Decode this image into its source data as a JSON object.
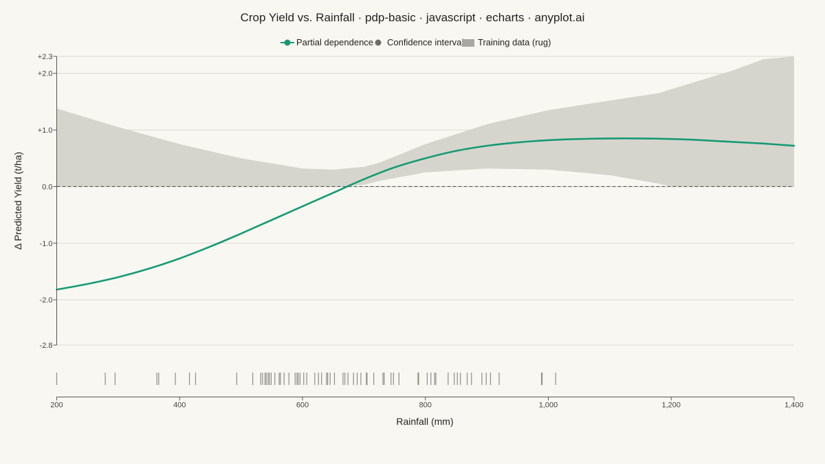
{
  "chart_data": {
    "type": "line",
    "title": "Crop Yield vs. Rainfall · pdp-basic · javascript · echarts · anyplot.ai",
    "xlabel": "Rainfall (mm)",
    "ylabel": "Δ Predicted Yield (t/ha)",
    "xlim": [
      200,
      1400
    ],
    "ylim": [
      -2.8,
      2.3
    ],
    "x_ticks": [
      200,
      400,
      600,
      800,
      1000,
      1200,
      1400
    ],
    "x_tick_labels": [
      "200",
      "400",
      "600",
      "800",
      "1,000",
      "1,200",
      "1,400"
    ],
    "y_ticks": [
      2.3,
      2.0,
      1.0,
      0.0,
      -1.0,
      -2.0,
      -2.8
    ],
    "y_tick_labels": [
      "+2.3",
      "+2.0",
      "+1.0",
      "0.0",
      "-1.0",
      "-2.0",
      "-2.8"
    ],
    "grid": true,
    "legend": {
      "placement": "top-center",
      "items": [
        {
          "label": "Partial dependence",
          "kind": "line-marker"
        },
        {
          "label": "Confidence interval",
          "kind": "circle"
        },
        {
          "label": "Training data (rug)",
          "kind": "rect"
        }
      ]
    },
    "reference_line": {
      "y": 0,
      "style": "dashed"
    },
    "series": [
      {
        "name": "Partial dependence",
        "color": "#159a74",
        "x": [
          200,
          250,
          300,
          350,
          400,
          450,
          500,
          550,
          600,
          650,
          700,
          750,
          800,
          850,
          900,
          950,
          1000,
          1050,
          1100,
          1150,
          1200,
          1250,
          1300,
          1350,
          1400
        ],
        "y": [
          -1.82,
          -1.72,
          -1.6,
          -1.45,
          -1.27,
          -1.06,
          -0.83,
          -0.59,
          -0.35,
          -0.11,
          0.13,
          0.34,
          0.5,
          0.63,
          0.72,
          0.78,
          0.82,
          0.84,
          0.85,
          0.85,
          0.84,
          0.82,
          0.79,
          0.76,
          0.72
        ]
      },
      {
        "name": "Confidence interval",
        "color": "#d6d5cd",
        "x": [
          200,
          300,
          400,
          500,
          600,
          650,
          700,
          725,
          800,
          900,
          1000,
          1100,
          1180,
          1200,
          1300,
          1350,
          1400
        ],
        "upper": [
          1.38,
          1.05,
          0.75,
          0.5,
          0.32,
          0.3,
          0.35,
          0.42,
          0.75,
          1.1,
          1.35,
          1.52,
          1.65,
          1.72,
          2.05,
          2.25,
          2.3
        ],
        "lower": [
          0.0,
          0.0,
          0.0,
          0.0,
          0.0,
          0.0,
          0.03,
          0.1,
          0.25,
          0.32,
          0.3,
          0.2,
          0.05,
          0.0,
          0.0,
          0.0,
          0.0
        ]
      }
    ],
    "rug": {
      "name": "Training data (rug)",
      "color": "#8c8c88",
      "x": [
        200,
        279,
        295,
        363,
        366,
        393,
        416,
        426,
        493,
        519,
        532,
        535,
        539,
        541,
        544,
        546,
        549,
        555,
        562,
        564,
        570,
        578,
        588,
        591,
        593,
        596,
        602,
        607,
        620,
        626,
        631,
        639,
        641,
        645,
        652,
        666,
        669,
        674,
        683,
        689,
        695,
        704,
        705,
        716,
        731,
        733,
        744,
        748,
        757,
        788,
        789,
        803,
        809,
        815,
        817,
        837,
        847,
        852,
        857,
        868,
        875,
        892,
        899,
        906,
        920,
        989,
        990,
        1012
      ]
    }
  }
}
